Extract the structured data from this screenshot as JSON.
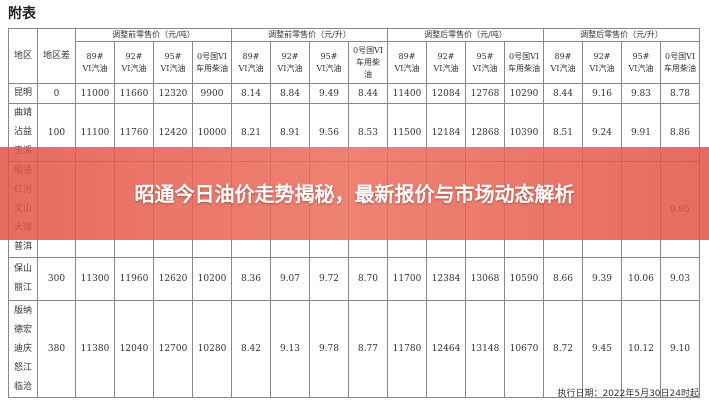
{
  "title": "附表",
  "table": {
    "header": {
      "region": "地区",
      "diff": "地区差",
      "groups": [
        "调整前零售价（元/吨）",
        "调整前零售价（元/升）",
        "调整后零售价（元/吨）",
        "调整后零售价（元/升）"
      ],
      "columns": [
        [
          "89#",
          "VI汽油"
        ],
        [
          "92#",
          "VI汽油"
        ],
        [
          "95#",
          "VI汽油"
        ],
        [
          "0号国VI",
          "车用柴油"
        ],
        [
          "89#",
          "VI汽油"
        ],
        [
          "92#",
          "VI汽油"
        ],
        [
          "95#",
          "VI汽油"
        ],
        [
          "0号国VI",
          "车用柴",
          "油"
        ],
        [
          "89#",
          "VI汽油"
        ],
        [
          "92#",
          "VI汽油"
        ],
        [
          "95#",
          "VI汽油"
        ],
        [
          "0号国VI",
          "车用柴油"
        ],
        [
          "89#",
          "VI汽油"
        ],
        [
          "92#",
          "VI汽油"
        ],
        [
          "95#",
          "VI汽油"
        ],
        [
          "0号国VI",
          "车用柴油"
        ]
      ]
    },
    "rows": [
      {
        "regions": [
          "昆明"
        ],
        "diff": "0",
        "cells": [
          "11000",
          "11660",
          "12320",
          "9900",
          "8.14",
          "8.84",
          "9.49",
          "8.44",
          "11400",
          "12084",
          "12768",
          "10290",
          "8.44",
          "9.16",
          "9.83",
          "8.78"
        ]
      },
      {
        "regions": [
          "曲靖",
          "沾益",
          "玉溪"
        ],
        "diff": "100",
        "cells": [
          "11100",
          "11760",
          "12420",
          "10000",
          "8.21",
          "8.91",
          "9.56",
          "8.53",
          "11500",
          "12184",
          "12868",
          "10390",
          "8.51",
          "9.24",
          "9.91",
          "8.86"
        ]
      },
      {
        "regions": [
          "昭通",
          "红河",
          "文山",
          "大理",
          "普洱"
        ],
        "diff": null,
        "cells": [
          null,
          null,
          null,
          null,
          null,
          null,
          null,
          null,
          null,
          null,
          null,
          null,
          null,
          null,
          null,
          "9.95"
        ]
      },
      {
        "regions": [
          "保山",
          "丽江"
        ],
        "diff": "300",
        "cells": [
          "11300",
          "11960",
          "12620",
          "10200",
          "8.36",
          "9.07",
          "9.72",
          "8.70",
          "11700",
          "12384",
          "13068",
          "10590",
          "8.66",
          "9.39",
          "10.06",
          "9.03"
        ]
      },
      {
        "regions": [
          "版纳",
          "德宏",
          "迪庆",
          "怒江",
          "临沧"
        ],
        "diff": "380",
        "cells": [
          "11380",
          "12040",
          "12700",
          "10280",
          "8.42",
          "9.13",
          "9.78",
          "8.77",
          "11780",
          "12464",
          "13148",
          "10670",
          "8.72",
          "9.45",
          "10.12",
          "9.10"
        ]
      }
    ]
  },
  "footer": "执行日期：2022年5月30日24时起",
  "banner": "昭通今日油价走势揭秘，最新报价与市场动态解析"
}
